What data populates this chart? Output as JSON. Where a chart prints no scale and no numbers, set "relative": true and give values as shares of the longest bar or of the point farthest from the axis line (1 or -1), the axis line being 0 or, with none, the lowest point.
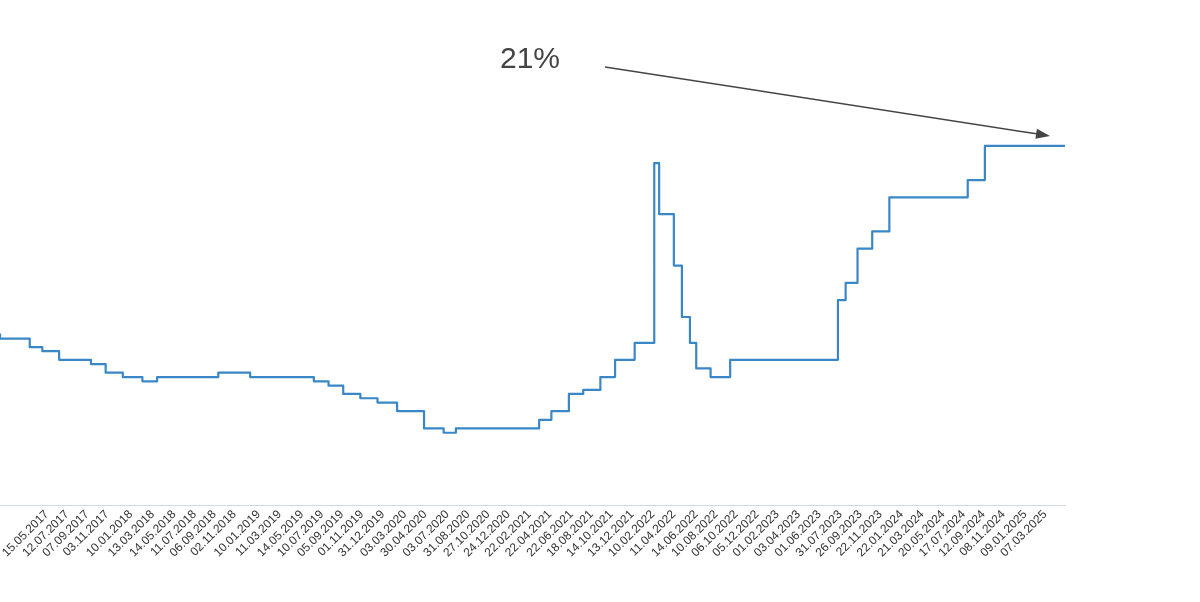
{
  "chart_data": {
    "type": "step",
    "relative": true,
    "color": "#3a87c8",
    "x": [
      "2017-01-01",
      "2017-03-27",
      "2017-05-02",
      "2017-06-19",
      "2017-09-18",
      "2017-10-30",
      "2017-12-18",
      "2018-02-12",
      "2018-03-26",
      "2018-09-17",
      "2018-12-17",
      "2019-06-17",
      "2019-07-29",
      "2019-09-09",
      "2019-10-28",
      "2019-12-16",
      "2020-02-10",
      "2020-04-27",
      "2020-06-22",
      "2020-07-27",
      "2021-03-22",
      "2021-04-26",
      "2021-06-15",
      "2021-07-26",
      "2021-09-13",
      "2021-10-25",
      "2021-12-20",
      "2022-02-14",
      "2022-02-28",
      "2022-04-11",
      "2022-05-04",
      "2022-05-27",
      "2022-06-14",
      "2022-07-25",
      "2022-09-19",
      "2023-07-24",
      "2023-08-15",
      "2023-09-18",
      "2023-10-30",
      "2023-12-18",
      "2024-07-29",
      "2024-09-16",
      "2024-10-28",
      "2025-05-03"
    ],
    "values": [
      0.476,
      0.464,
      0.44,
      0.429,
      0.405,
      0.393,
      0.369,
      0.357,
      0.345,
      0.357,
      0.369,
      0.357,
      0.345,
      0.333,
      0.31,
      0.298,
      0.286,
      0.262,
      0.214,
      0.202,
      0.214,
      0.238,
      0.262,
      0.31,
      0.321,
      0.357,
      0.405,
      0.452,
      0.952,
      0.81,
      0.667,
      0.524,
      0.452,
      0.381,
      0.357,
      0.405,
      0.571,
      0.619,
      0.714,
      0.762,
      0.857,
      0.905,
      1,
      1
    ],
    "xlim": [
      "2017-01-01",
      "2025-05-03"
    ],
    "xticks": [
      {
        "value": "2017-05-15",
        "label": "15.05.2017"
      },
      {
        "value": "2017-07-12",
        "label": "12.07.2017"
      },
      {
        "value": "2017-09-07",
        "label": "07.09.2017"
      },
      {
        "value": "2017-11-03",
        "label": "03.11.2017"
      },
      {
        "value": "2018-01-10",
        "label": "10.01.2018"
      },
      {
        "value": "2018-03-13",
        "label": "13.03.2018"
      },
      {
        "value": "2018-05-14",
        "label": "14.05.2018"
      },
      {
        "value": "2018-07-11",
        "label": "11.07.2018"
      },
      {
        "value": "2018-09-06",
        "label": "06.09.2018"
      },
      {
        "value": "2018-11-02",
        "label": "02.11.2018"
      },
      {
        "value": "2019-01-10",
        "label": "10.01.2019"
      },
      {
        "value": "2019-03-11",
        "label": "11.03.2019"
      },
      {
        "value": "2019-05-14",
        "label": "14.05.2019"
      },
      {
        "value": "2019-07-10",
        "label": "10.07.2019"
      },
      {
        "value": "2019-09-05",
        "label": "05.09.2019"
      },
      {
        "value": "2019-11-01",
        "label": "01.11.2019"
      },
      {
        "value": "2019-12-31",
        "label": "31.12.2019"
      },
      {
        "value": "2020-03-03",
        "label": "03.03.2020"
      },
      {
        "value": "2020-04-30",
        "label": "30.04.2020"
      },
      {
        "value": "2020-07-03",
        "label": "03.07.2020"
      },
      {
        "value": "2020-08-31",
        "label": "31.08.2020"
      },
      {
        "value": "2020-10-27",
        "label": "27.10.2020"
      },
      {
        "value": "2020-12-24",
        "label": "24.12.2020"
      },
      {
        "value": "2021-02-22",
        "label": "22.02.2021"
      },
      {
        "value": "2021-04-22",
        "label": "22.04.2021"
      },
      {
        "value": "2021-06-22",
        "label": "22.06.2021"
      },
      {
        "value": "2021-08-18",
        "label": "18.08.2021"
      },
      {
        "value": "2021-10-14",
        "label": "14.10.2021"
      },
      {
        "value": "2021-12-13",
        "label": "13.12.2021"
      },
      {
        "value": "2022-02-10",
        "label": "10.02.2022"
      },
      {
        "value": "2022-04-11",
        "label": "11.04.2022"
      },
      {
        "value": "2022-06-14",
        "label": "14.06.2022"
      },
      {
        "value": "2022-08-10",
        "label": "10.08.2022"
      },
      {
        "value": "2022-10-06",
        "label": "06.10.2022"
      },
      {
        "value": "2022-12-05",
        "label": "05.12.2022"
      },
      {
        "value": "2023-02-01",
        "label": "01.02.2023"
      },
      {
        "value": "2023-04-03",
        "label": "03.04.2023"
      },
      {
        "value": "2023-06-01",
        "label": "01.06.2023"
      },
      {
        "value": "2023-07-31",
        "label": "31.07.2023"
      },
      {
        "value": "2023-09-26",
        "label": "26.09.2023"
      },
      {
        "value": "2023-11-22",
        "label": "22.11.2023"
      },
      {
        "value": "2024-01-22",
        "label": "22.01.2024"
      },
      {
        "value": "2024-03-21",
        "label": "21.03.2024"
      },
      {
        "value": "2024-05-20",
        "label": "20.05.2024"
      },
      {
        "value": "2024-07-17",
        "label": "17.07.2024"
      },
      {
        "value": "2024-09-12",
        "label": "12.09.2024"
      },
      {
        "value": "2024-11-08",
        "label": "08.11.2024"
      },
      {
        "value": "2025-01-09",
        "label": "09.01.2025"
      },
      {
        "value": "2025-03-07",
        "label": "07.03.2025"
      }
    ],
    "annotations": [
      "21%"
    ]
  }
}
